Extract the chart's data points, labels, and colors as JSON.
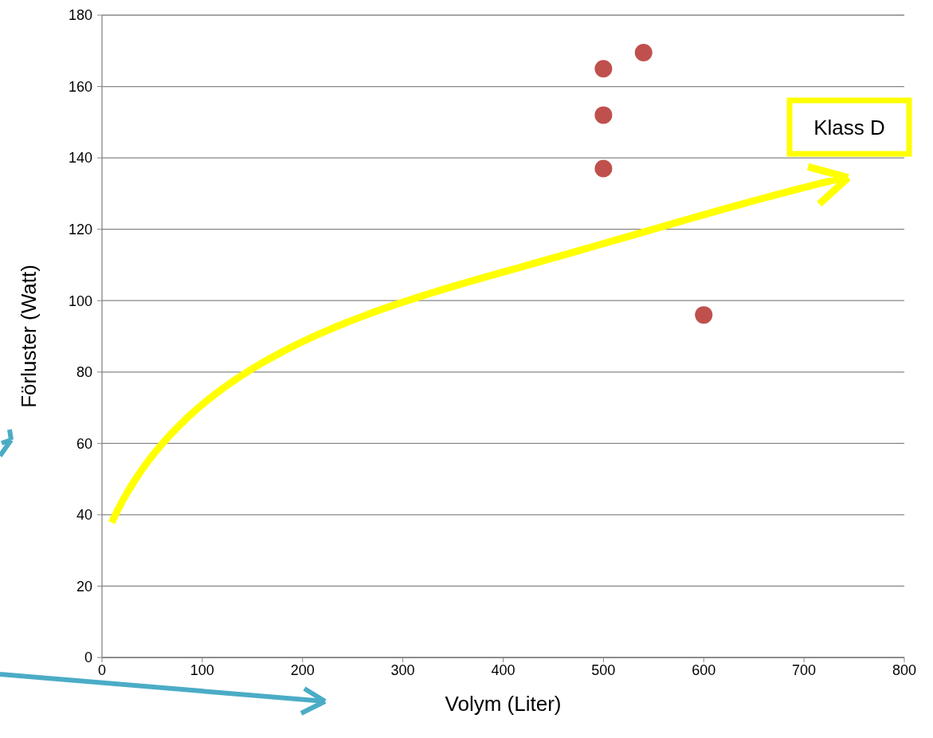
{
  "chart_data": {
    "type": "scatter",
    "xlabel": "Volym (Liter)",
    "ylabel": "Förluster (Watt)",
    "xlim": [
      0,
      800
    ],
    "xticks": [
      0,
      100,
      200,
      300,
      400,
      500,
      600,
      700,
      800
    ],
    "ylim": [
      0,
      180
    ],
    "yticks": [
      0,
      20,
      40,
      60,
      80,
      100,
      120,
      140,
      160,
      180
    ],
    "grid": "y",
    "marker": "circle",
    "series": [
      {
        "color": "#c0504d",
        "x": [
          500,
          500,
          500,
          540,
          600
        ],
        "values": [
          165,
          152,
          137,
          169.5,
          96
        ]
      }
    ],
    "annotations": [
      "Klass D"
    ]
  }
}
